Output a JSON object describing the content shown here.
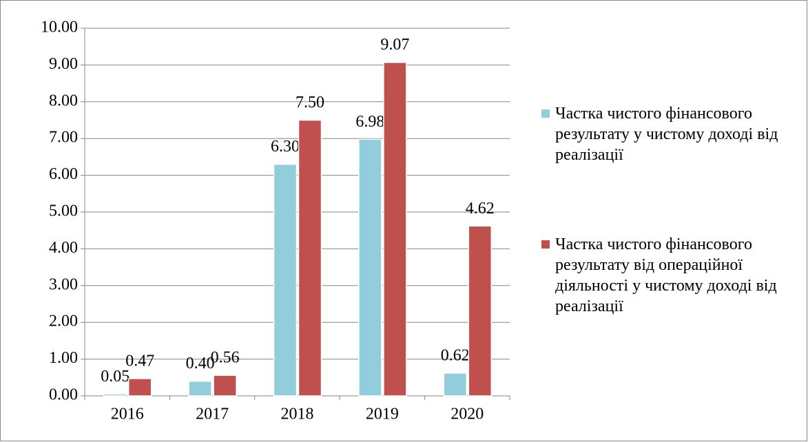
{
  "chart_data": {
    "type": "bar",
    "categories": [
      "2016",
      "2017",
      "2018",
      "2019",
      "2020"
    ],
    "series": [
      {
        "name": "Частка чистого фінансового результату у чистому доході від реалізації",
        "color": "#92cddc",
        "values": [
          0.05,
          0.4,
          6.3,
          6.98,
          0.62
        ],
        "value_labels": [
          "0.05",
          "0.40",
          "6.30",
          "6.98",
          "0.62"
        ]
      },
      {
        "name": "Частка чистого фінансового результату від операційної діяльності у чистому доході від реалізації",
        "color": "#c0504d",
        "values": [
          0.47,
          0.56,
          7.5,
          9.07,
          4.62
        ],
        "value_labels": [
          "0.47",
          "0.56",
          "7.50",
          "9.07",
          "4.62"
        ]
      }
    ],
    "ylim": [
      0,
      10
    ],
    "yticks": [
      {
        "value": 0,
        "label": "0.00"
      },
      {
        "value": 1,
        "label": "1.00"
      },
      {
        "value": 2,
        "label": "2.00"
      },
      {
        "value": 3,
        "label": "3.00"
      },
      {
        "value": 4,
        "label": "4.00"
      },
      {
        "value": 5,
        "label": "5.00"
      },
      {
        "value": 6,
        "label": "6.00"
      },
      {
        "value": 7,
        "label": "7.00"
      },
      {
        "value": 8,
        "label": "8.00"
      },
      {
        "value": 9,
        "label": "9.00"
      },
      {
        "value": 10,
        "label": "10.00"
      }
    ],
    "grid": true,
    "legend": "right"
  }
}
